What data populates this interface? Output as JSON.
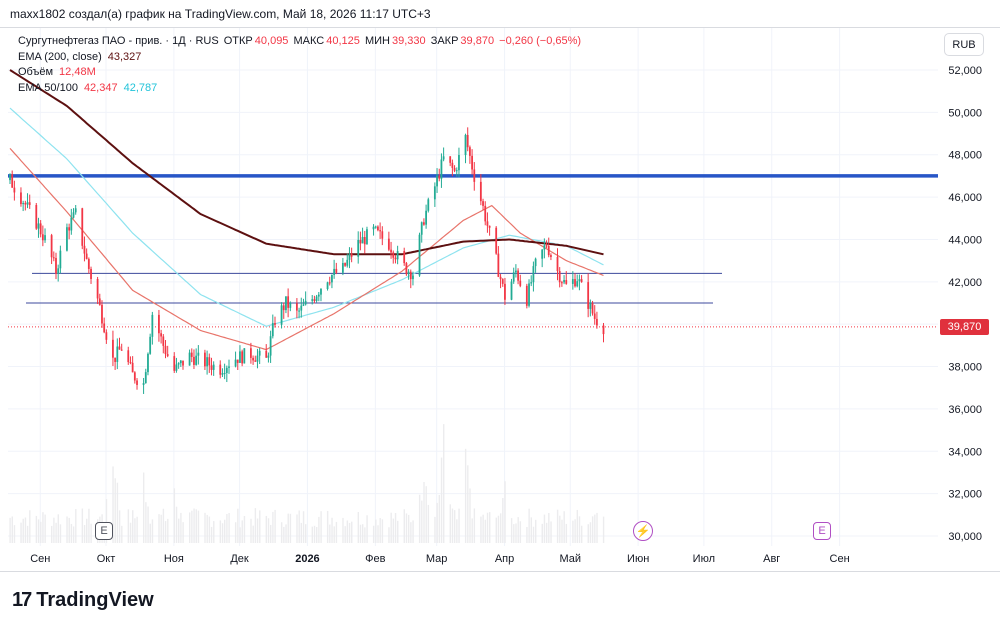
{
  "header": {
    "attribution": "maxx1802 создал(а) график на TradingView.com, Май 18, 2026 11:17 UTC+3"
  },
  "legend": {
    "symbol": "Сургутнефтегаз ПАО - прив. · 1Д · RUS",
    "open_label": "ОТКР",
    "open_value": "40,095",
    "high_label": "МАКС",
    "high_value": "40,125",
    "low_label": "МИН",
    "low_value": "39,330",
    "close_label": "ЗАКР",
    "close_value": "39,870",
    "change": "−0,260 (−0,65%)",
    "ema200_label": "EMA (200, close)",
    "ema200_value": "43,327",
    "volume_label": "Объём",
    "volume_value": "12,48M",
    "ema50100_label": "EMA 50/100",
    "ema50_value": "42,347",
    "ema100_value": "42,787"
  },
  "currency_button": "RUB",
  "last_price_tag": "39,870",
  "earnings_marker": "E",
  "brand": {
    "name": "TradingView"
  },
  "colors": {
    "up": "#22ab94",
    "down": "#f23645",
    "ema50": "#e8746a",
    "ema100": "#8ee3ef",
    "ema200": "#5d1010",
    "level_major": "#2856c7",
    "level_minor": "#3c4a9c"
  },
  "chart_data": {
    "type": "candlestick",
    "title": "Сургутнефтегаз ПАО - прив. · 1Д · RUS",
    "x_tick_labels": [
      "Сен",
      "Окт",
      "Ноя",
      "Дек",
      "2026",
      "Фев",
      "Мар",
      "Апр",
      "Май",
      "Июн",
      "Июл",
      "Авг",
      "Сен"
    ],
    "y_tick_labels": [
      "52,000",
      "50,000",
      "48,000",
      "46,000",
      "44,000",
      "42,000",
      "40,000",
      "38,000",
      "36,000",
      "34,000",
      "32,000",
      "30,000"
    ],
    "ylim": [
      29.5,
      53.0
    ],
    "last_price": 39.87,
    "horizontal_levels": [
      {
        "value": 47.0,
        "style": "thick-blue"
      },
      {
        "value": 42.4,
        "style": "thin"
      },
      {
        "value": 41.0,
        "style": "thin"
      }
    ],
    "close_path": [
      [
        "2025-08-20",
        46.8
      ],
      [
        "2025-08-25",
        46.0
      ],
      [
        "2025-09-01",
        44.8
      ],
      [
        "2025-09-05",
        44.0
      ],
      [
        "2025-09-10",
        42.5
      ],
      [
        "2025-09-15",
        44.5
      ],
      [
        "2025-09-19",
        45.2
      ],
      [
        "2025-09-24",
        43.0
      ],
      [
        "2025-09-30",
        40.8
      ],
      [
        "2025-10-06",
        38.3
      ],
      [
        "2025-10-10",
        38.9
      ],
      [
        "2025-10-15",
        37.6
      ],
      [
        "2025-10-20",
        37.2
      ],
      [
        "2025-10-24",
        40.5
      ],
      [
        "2025-10-29",
        39.0
      ],
      [
        "2025-11-03",
        37.8
      ],
      [
        "2025-11-10",
        38.5
      ],
      [
        "2025-11-17",
        38.2
      ],
      [
        "2025-11-24",
        37.9
      ],
      [
        "2025-12-01",
        38.4
      ],
      [
        "2025-12-08",
        38.6
      ],
      [
        "2025-12-15",
        38.3
      ],
      [
        "2025-12-19",
        40.2
      ],
      [
        "2025-12-24",
        41.0
      ],
      [
        "2025-12-29",
        40.5
      ],
      [
        "2026-01-05",
        41.2
      ],
      [
        "2026-01-12",
        42.2
      ],
      [
        "2026-01-19",
        42.6
      ],
      [
        "2026-01-26",
        43.8
      ],
      [
        "2026-02-02",
        44.4
      ],
      [
        "2026-02-09",
        43.8
      ],
      [
        "2026-02-16",
        42.7
      ],
      [
        "2026-02-20",
        42.4
      ],
      [
        "2026-02-25",
        45.0
      ],
      [
        "2026-03-02",
        46.5
      ],
      [
        "2026-03-06",
        47.8
      ],
      [
        "2026-03-11",
        47.2
      ],
      [
        "2026-03-16",
        48.8
      ],
      [
        "2026-03-20",
        47.0
      ],
      [
        "2026-03-24",
        45.5
      ],
      [
        "2026-03-30",
        43.0
      ],
      [
        "2026-04-03",
        41.3
      ],
      [
        "2026-04-08",
        42.5
      ],
      [
        "2026-04-13",
        41.2
      ],
      [
        "2026-04-17",
        42.8
      ],
      [
        "2026-04-22",
        43.8
      ],
      [
        "2026-04-27",
        42.5
      ],
      [
        "2026-05-01",
        41.8
      ],
      [
        "2026-05-06",
        42.2
      ],
      [
        "2026-05-11",
        41.0
      ],
      [
        "2026-05-14",
        40.3
      ],
      [
        "2026-05-18",
        39.87
      ]
    ],
    "ema200_path": [
      [
        "2025-08-20",
        52.0
      ],
      [
        "2025-09-15",
        50.3
      ],
      [
        "2025-10-15",
        47.6
      ],
      [
        "2025-11-15",
        45.2
      ],
      [
        "2025-12-15",
        43.8
      ],
      [
        "2026-01-15",
        43.3
      ],
      [
        "2026-02-15",
        43.3
      ],
      [
        "2026-03-15",
        43.9
      ],
      [
        "2026-04-05",
        44.0
      ],
      [
        "2026-05-01",
        43.7
      ],
      [
        "2026-05-18",
        43.3
      ]
    ],
    "ema100_path": [
      [
        "2025-08-20",
        50.2
      ],
      [
        "2025-09-15",
        47.8
      ],
      [
        "2025-10-15",
        44.3
      ],
      [
        "2025-11-15",
        41.4
      ],
      [
        "2025-12-15",
        39.9
      ],
      [
        "2026-01-15",
        40.8
      ],
      [
        "2026-02-15",
        42.1
      ],
      [
        "2026-03-15",
        43.6
      ],
      [
        "2026-04-05",
        44.2
      ],
      [
        "2026-05-01",
        43.7
      ],
      [
        "2026-05-18",
        42.8
      ]
    ],
    "ema50_path": [
      [
        "2025-08-20",
        48.3
      ],
      [
        "2025-09-15",
        45.3
      ],
      [
        "2025-10-15",
        41.6
      ],
      [
        "2025-11-15",
        39.7
      ],
      [
        "2025-12-15",
        38.8
      ],
      [
        "2026-01-15",
        40.5
      ],
      [
        "2026-02-15",
        42.5
      ],
      [
        "2026-03-15",
        44.9
      ],
      [
        "2026-03-28",
        45.6
      ],
      [
        "2026-04-10",
        44.3
      ],
      [
        "2026-05-01",
        43.0
      ],
      [
        "2026-05-18",
        42.3
      ]
    ],
    "volume_relative": [
      [
        "2025-10-06",
        0.85
      ],
      [
        "2025-10-20",
        0.6
      ],
      [
        "2025-11-03",
        0.45
      ],
      [
        "2026-02-25",
        0.65
      ],
      [
        "2026-03-06",
        0.95
      ],
      [
        "2026-03-16",
        0.75
      ],
      [
        "2026-04-03",
        0.55
      ],
      [
        "2026-05-14",
        0.35
      ]
    ]
  }
}
